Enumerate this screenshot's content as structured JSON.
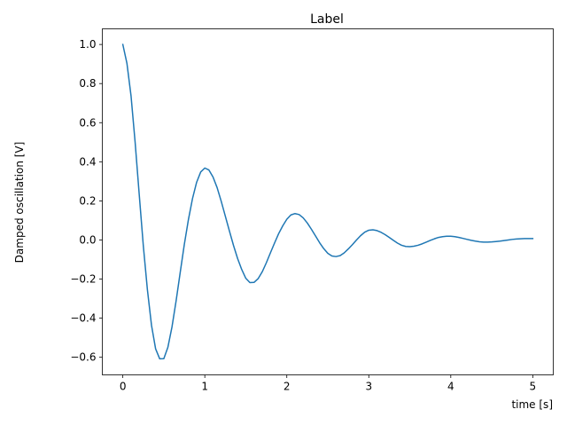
{
  "chart_data": {
    "type": "line",
    "title": "Label",
    "xlabel": "time [s]",
    "ylabel": "Damped oscillation [V]",
    "xlim": [
      -0.25,
      5.25
    ],
    "ylim": [
      -0.69,
      1.08
    ],
    "x_ticks": [
      0,
      1,
      2,
      3,
      4,
      5
    ],
    "x_tick_labels": [
      "0",
      "1",
      "2",
      "3",
      "4",
      "5"
    ],
    "y_ticks": [
      -0.6,
      -0.4,
      -0.2,
      0.0,
      0.2,
      0.4,
      0.6,
      0.8,
      1.0
    ],
    "y_tick_labels": [
      "−0.6",
      "−0.4",
      "−0.2",
      "0.0",
      "0.2",
      "0.4",
      "0.6",
      "0.8",
      "1.0"
    ],
    "grid": false,
    "legend": "none",
    "series": [
      {
        "color": "#1f77b4",
        "x": [
          0.0,
          0.05,
          0.1,
          0.15,
          0.2,
          0.25,
          0.3,
          0.35,
          0.4,
          0.45,
          0.5,
          0.55,
          0.6,
          0.65,
          0.7,
          0.75,
          0.8,
          0.85,
          0.9,
          0.95,
          1.0,
          1.05,
          1.1,
          1.15,
          1.2,
          1.25,
          1.3,
          1.35,
          1.4,
          1.45,
          1.5,
          1.55,
          1.6,
          1.65,
          1.7,
          1.75,
          1.8,
          1.85,
          1.9,
          1.95,
          2.0,
          2.05,
          2.1,
          2.15,
          2.2,
          2.25,
          2.3,
          2.35,
          2.4,
          2.45,
          2.5,
          2.55,
          2.6,
          2.65,
          2.7,
          2.75,
          2.8,
          2.85,
          2.9,
          2.95,
          3.0,
          3.05,
          3.1,
          3.15,
          3.2,
          3.25,
          3.3,
          3.35,
          3.4,
          3.45,
          3.5,
          3.55,
          3.6,
          3.65,
          3.7,
          3.75,
          3.8,
          3.85,
          3.9,
          3.95,
          4.0,
          4.05,
          4.1,
          4.15,
          4.2,
          4.25,
          4.3,
          4.35,
          4.4,
          4.45,
          4.5,
          4.55,
          4.6,
          4.65,
          4.7,
          4.75,
          4.8,
          4.85,
          4.9,
          4.95,
          5.0
        ],
        "y": [
          1.0,
          0.904,
          0.738,
          0.5,
          0.233,
          -0.03,
          -0.255,
          -0.437,
          -0.557,
          -0.608,
          -0.607,
          -0.548,
          -0.444,
          -0.311,
          -0.166,
          -0.023,
          0.104,
          0.212,
          0.295,
          0.348,
          0.368,
          0.358,
          0.322,
          0.268,
          0.198,
          0.122,
          0.046,
          -0.028,
          -0.095,
          -0.151,
          -0.196,
          -0.218,
          -0.217,
          -0.198,
          -0.163,
          -0.117,
          -0.066,
          -0.016,
          0.032,
          0.072,
          0.106,
          0.128,
          0.135,
          0.13,
          0.113,
          0.087,
          0.055,
          0.021,
          -0.014,
          -0.044,
          -0.068,
          -0.082,
          -0.085,
          -0.08,
          -0.066,
          -0.046,
          -0.024,
          0.0,
          0.022,
          0.04,
          0.05,
          0.052,
          0.048,
          0.039,
          0.027,
          0.013,
          -0.002,
          -0.016,
          -0.027,
          -0.033,
          -0.034,
          -0.032,
          -0.027,
          -0.02,
          -0.011,
          -0.002,
          0.006,
          0.013,
          0.017,
          0.019,
          0.019,
          0.017,
          0.013,
          0.008,
          0.003,
          -0.002,
          -0.006,
          -0.009,
          -0.011,
          -0.011,
          -0.01,
          -0.008,
          -0.006,
          -0.003,
          0.0,
          0.003,
          0.005,
          0.006,
          0.007,
          0.007,
          0.007
        ]
      }
    ]
  }
}
